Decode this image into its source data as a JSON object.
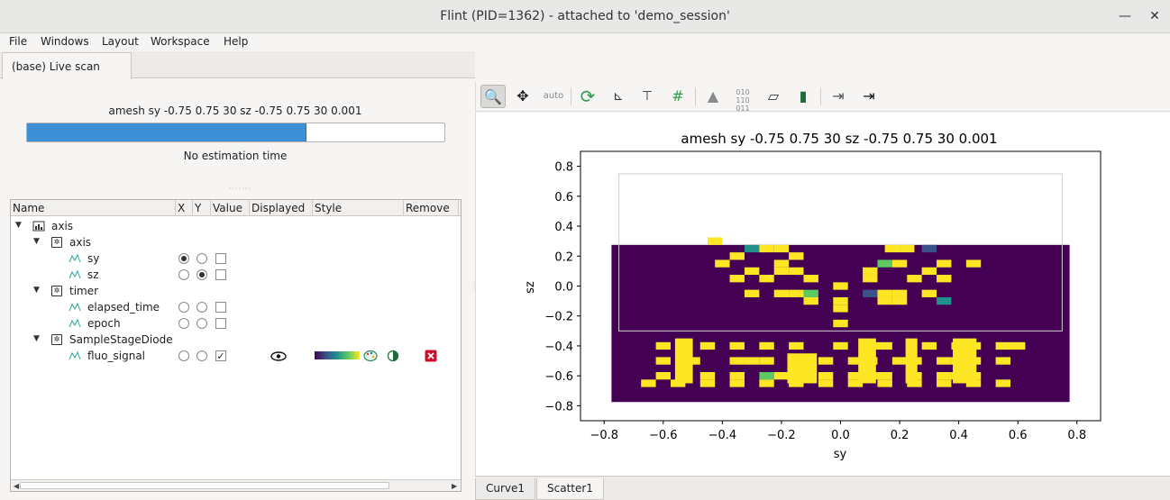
{
  "window": {
    "title": "Flint (PID=1362) - attached to 'demo_session'",
    "minimize_glyph": "—",
    "close_glyph": "✕"
  },
  "menu": [
    "File",
    "Windows",
    "Layout",
    "Workspace",
    "Help"
  ],
  "left_panel": {
    "tab_label": "(base) Live scan",
    "scan_title": "amesh sy -0.75 0.75 30 sz -0.75 0.75 30 0.001",
    "progress_fraction": 0.67,
    "estimation_text": "No estimation time"
  },
  "tree": {
    "columns": [
      "Name",
      "X",
      "Y",
      "Value",
      "Displayed",
      "Style",
      "Remove",
      ""
    ],
    "rows": [
      {
        "label": "axis",
        "level": 0,
        "kind": "device",
        "expanded": true
      },
      {
        "label": "axis",
        "level": 1,
        "kind": "group",
        "expanded": true
      },
      {
        "label": "sy",
        "level": 2,
        "kind": "channel",
        "x": true,
        "y": false,
        "value": false
      },
      {
        "label": "sz",
        "level": 2,
        "kind": "channel",
        "x": false,
        "y": true,
        "value": false
      },
      {
        "label": "timer",
        "level": 1,
        "kind": "group",
        "expanded": true
      },
      {
        "label": "elapsed_time",
        "level": 2,
        "kind": "channel",
        "x": false,
        "y": false,
        "value": false
      },
      {
        "label": "epoch",
        "level": 2,
        "kind": "channel",
        "x": false,
        "y": false,
        "value": false
      },
      {
        "label": "SampleStageDiode",
        "level": 1,
        "kind": "group",
        "expanded": true
      },
      {
        "label": "fluo_signal",
        "level": 2,
        "kind": "channel",
        "x": false,
        "y": false,
        "value": true,
        "displayed": true,
        "colormap": "viridis"
      }
    ]
  },
  "toolbar": {
    "icons": [
      "zoom-icon",
      "pan-icon",
      "autoscale-icon",
      "reset-zoom-icon",
      "axis-options-icon",
      "crosshair-icon",
      "grid-icon",
      "marker-icon",
      "data-values-icon",
      "aspect-ratio-icon",
      "colorbar-icon",
      "export-icon",
      "export-menu-icon"
    ],
    "autoscale_text": "auto"
  },
  "bottom_tabs": [
    "Curve1",
    "Scatter1"
  ],
  "chart_data": {
    "type": "heatmap",
    "title": "amesh sy -0.75 0.75 30 sz -0.75 0.75 30 0.001",
    "xlabel": "sy",
    "ylabel": "sz",
    "xlim": [
      -0.88,
      0.88
    ],
    "ylim": [
      -0.9,
      0.9
    ],
    "xticks": [
      -0.8,
      -0.6,
      -0.4,
      -0.2,
      0.0,
      0.2,
      0.4,
      0.6,
      0.8
    ],
    "yticks": [
      -0.8,
      -0.6,
      -0.4,
      -0.2,
      0.0,
      0.2,
      0.4,
      0.6,
      0.8
    ],
    "xtick_labels": [
      "−0.8",
      "−0.6",
      "−0.4",
      "−0.2",
      "0.0",
      "0.2",
      "0.4",
      "0.6",
      "0.8"
    ],
    "ytick_labels": [
      "−0.8",
      "−0.6",
      "−0.4",
      "−0.2",
      "0.0",
      "0.2",
      "0.4",
      "0.6",
      "0.8"
    ],
    "x_range": [
      -0.775,
      0.775
    ],
    "y_range": [
      -0.775,
      0.275
    ],
    "outline_box": {
      "x": [
        -0.75,
        0.75
      ],
      "y": [
        -0.3,
        0.75
      ]
    },
    "grid": false,
    "colormap": "viridis",
    "colors": [
      "#440154",
      "#3b528b",
      "#21918c",
      "#5ec962",
      "#fde725"
    ],
    "cells": [
      {
        "x": -0.425,
        "y": 0.3,
        "v": 4
      },
      {
        "x": -0.3,
        "y": 0.25,
        "v": 2
      },
      {
        "x": -0.25,
        "y": 0.25,
        "v": 4
      },
      {
        "x": -0.2,
        "y": 0.25,
        "v": 4
      },
      {
        "x": 0.175,
        "y": 0.25,
        "v": 4
      },
      {
        "x": 0.225,
        "y": 0.25,
        "v": 4
      },
      {
        "x": 0.3,
        "y": 0.25,
        "v": 1
      },
      {
        "x": -0.4,
        "y": 0.15,
        "v": 4
      },
      {
        "x": -0.15,
        "y": 0.2,
        "v": 4
      },
      {
        "x": -0.35,
        "y": 0.2,
        "v": 4
      },
      {
        "x": 0.15,
        "y": 0.15,
        "v": 3
      },
      {
        "x": 0.2,
        "y": 0.15,
        "v": 4
      },
      {
        "x": 0.35,
        "y": 0.15,
        "v": 4
      },
      {
        "x": 0.45,
        "y": 0.15,
        "v": 4
      },
      {
        "x": -0.3,
        "y": 0.1,
        "v": 4
      },
      {
        "x": -0.2,
        "y": 0.15,
        "v": 4
      },
      {
        "x": -0.2,
        "y": 0.1,
        "v": 4
      },
      {
        "x": -0.15,
        "y": 0.1,
        "v": 4
      },
      {
        "x": 0.1,
        "y": 0.1,
        "v": 4
      },
      {
        "x": 0.3,
        "y": 0.1,
        "v": 4
      },
      {
        "x": -0.35,
        "y": 0.05,
        "v": 4
      },
      {
        "x": -0.25,
        "y": 0.05,
        "v": 4
      },
      {
        "x": -0.1,
        "y": 0.05,
        "v": 4
      },
      {
        "x": 0.0,
        "y": 0.0,
        "v": 4
      },
      {
        "x": 0.1,
        "y": 0.05,
        "v": 4
      },
      {
        "x": 0.25,
        "y": 0.05,
        "v": 4
      },
      {
        "x": 0.35,
        "y": 0.05,
        "v": 4
      },
      {
        "x": -0.3,
        "y": -0.05,
        "v": 4
      },
      {
        "x": -0.2,
        "y": -0.05,
        "v": 4
      },
      {
        "x": -0.15,
        "y": -0.05,
        "v": 4
      },
      {
        "x": -0.1,
        "y": -0.05,
        "v": 3
      },
      {
        "x": 0.1,
        "y": -0.05,
        "v": 1
      },
      {
        "x": 0.15,
        "y": -0.05,
        "v": 4
      },
      {
        "x": 0.2,
        "y": -0.05,
        "v": 4
      },
      {
        "x": 0.3,
        "y": -0.05,
        "v": 4
      },
      {
        "x": 0.35,
        "y": -0.1,
        "v": 2
      },
      {
        "x": -0.1,
        "y": -0.1,
        "v": 4
      },
      {
        "x": 0.0,
        "y": -0.1,
        "v": 4
      },
      {
        "x": 0.15,
        "y": -0.1,
        "v": 4
      },
      {
        "x": 0.2,
        "y": -0.1,
        "v": 4
      },
      {
        "x": 0.0,
        "y": -0.15,
        "v": 4
      },
      {
        "x": 0.0,
        "y": -0.25,
        "v": 4
      },
      {
        "x": -0.6,
        "y": -0.4,
        "v": 4
      },
      {
        "x": -0.45,
        "y": -0.4,
        "v": 4
      },
      {
        "x": -0.35,
        "y": -0.4,
        "v": 4
      },
      {
        "x": -0.25,
        "y": -0.4,
        "v": 4
      },
      {
        "x": -0.15,
        "y": -0.4,
        "v": 4
      },
      {
        "x": 0.0,
        "y": -0.4,
        "v": 4
      },
      {
        "x": 0.1,
        "y": -0.4,
        "v": 4
      },
      {
        "x": 0.15,
        "y": -0.4,
        "v": 4
      },
      {
        "x": 0.3,
        "y": -0.4,
        "v": 4
      },
      {
        "x": 0.4,
        "y": -0.4,
        "v": 4
      },
      {
        "x": 0.45,
        "y": -0.4,
        "v": 4
      },
      {
        "x": 0.55,
        "y": -0.4,
        "v": 4
      },
      {
        "x": 0.6,
        "y": -0.4,
        "v": 4
      },
      {
        "x": -0.6,
        "y": -0.5,
        "v": 4
      },
      {
        "x": -0.5,
        "y": -0.5,
        "v": 4
      },
      {
        "x": -0.35,
        "y": -0.5,
        "v": 4
      },
      {
        "x": -0.3,
        "y": -0.5,
        "v": 4
      },
      {
        "x": -0.25,
        "y": -0.5,
        "v": 4
      },
      {
        "x": -0.15,
        "y": -0.5,
        "v": 4
      },
      {
        "x": -0.05,
        "y": -0.5,
        "v": 4
      },
      {
        "x": 0.05,
        "y": -0.5,
        "v": 4
      },
      {
        "x": 0.1,
        "y": -0.5,
        "v": 4
      },
      {
        "x": 0.2,
        "y": -0.5,
        "v": 4
      },
      {
        "x": 0.25,
        "y": -0.5,
        "v": 4
      },
      {
        "x": 0.35,
        "y": -0.5,
        "v": 4
      },
      {
        "x": 0.4,
        "y": -0.5,
        "v": 4
      },
      {
        "x": 0.45,
        "y": -0.5,
        "v": 4
      },
      {
        "x": 0.55,
        "y": -0.5,
        "v": 4
      },
      {
        "x": -0.6,
        "y": -0.6,
        "v": 4
      },
      {
        "x": -0.45,
        "y": -0.6,
        "v": 4
      },
      {
        "x": -0.35,
        "y": -0.6,
        "v": 4
      },
      {
        "x": -0.25,
        "y": -0.6,
        "v": 3
      },
      {
        "x": -0.2,
        "y": -0.6,
        "v": 4
      },
      {
        "x": -0.15,
        "y": -0.6,
        "v": 4
      },
      {
        "x": -0.05,
        "y": -0.6,
        "v": 4
      },
      {
        "x": 0.05,
        "y": -0.6,
        "v": 4
      },
      {
        "x": 0.1,
        "y": -0.6,
        "v": 4
      },
      {
        "x": 0.15,
        "y": -0.6,
        "v": 4
      },
      {
        "x": 0.25,
        "y": -0.6,
        "v": 4
      },
      {
        "x": 0.35,
        "y": -0.6,
        "v": 4
      },
      {
        "x": 0.4,
        "y": -0.6,
        "v": 4
      },
      {
        "x": 0.45,
        "y": -0.6,
        "v": 4
      },
      {
        "x": -0.65,
        "y": -0.65,
        "v": 4
      },
      {
        "x": -0.55,
        "y": -0.65,
        "v": 4
      },
      {
        "x": -0.45,
        "y": -0.65,
        "v": 4
      },
      {
        "x": -0.35,
        "y": -0.65,
        "v": 4
      },
      {
        "x": -0.25,
        "y": -0.65,
        "v": 4
      },
      {
        "x": -0.15,
        "y": -0.65,
        "v": 4
      },
      {
        "x": -0.05,
        "y": -0.65,
        "v": 4
      },
      {
        "x": 0.05,
        "y": -0.65,
        "v": 4
      },
      {
        "x": 0.15,
        "y": -0.65,
        "v": 4
      },
      {
        "x": 0.25,
        "y": -0.65,
        "v": 4
      },
      {
        "x": 0.35,
        "y": -0.65,
        "v": 4
      },
      {
        "x": 0.45,
        "y": -0.65,
        "v": 4
      },
      {
        "x": 0.55,
        "y": -0.65,
        "v": 4
      }
    ],
    "bar_blocks": [
      {
        "x": [
          -0.56,
          -0.5
        ],
        "y": [
          -0.65,
          -0.35
        ],
        "v": 4
      },
      {
        "x": [
          -0.18,
          -0.08
        ],
        "y": [
          -0.65,
          -0.45
        ],
        "v": 4
      },
      {
        "x": [
          0.06,
          0.12
        ],
        "y": [
          -0.65,
          -0.35
        ],
        "v": 4
      },
      {
        "x": [
          0.22,
          0.26
        ],
        "y": [
          -0.65,
          -0.35
        ],
        "v": 4
      },
      {
        "x": [
          0.38,
          0.46
        ],
        "y": [
          -0.65,
          -0.35
        ],
        "v": 4
      }
    ]
  }
}
